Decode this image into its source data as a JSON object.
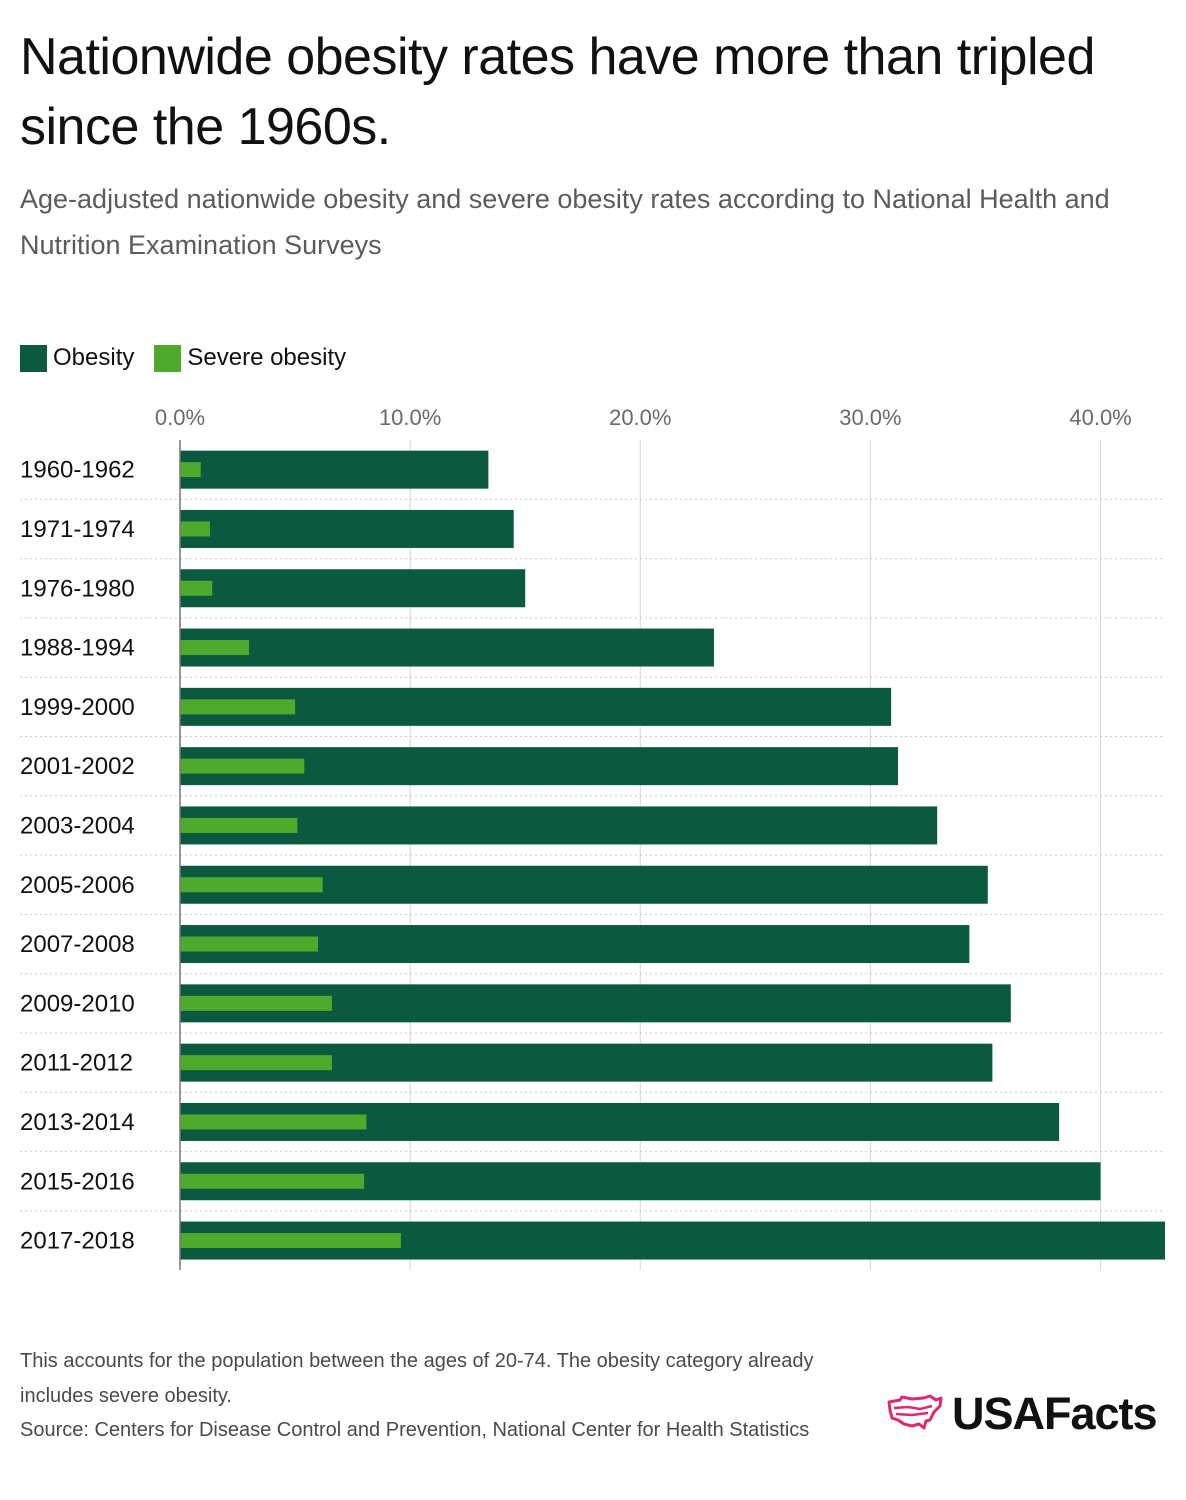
{
  "title": "Nationwide obesity rates have more than tripled since the 1960s.",
  "subtitle": "Age-adjusted nationwide obesity and severe obesity rates according to National Health and Nutrition Examination Surveys",
  "legend": {
    "obesity": "Obesity",
    "severe": "Severe obesity"
  },
  "colors": {
    "obesity": "#0b5a40",
    "severe": "#4fa92c",
    "logo_accent": "#e0286f"
  },
  "chart_data": {
    "type": "bar",
    "orientation": "horizontal",
    "categories": [
      "1960-1962",
      "1971-1974",
      "1976-1980",
      "1988-1994",
      "1999-2000",
      "2001-2002",
      "2003-2004",
      "2005-2006",
      "2007-2008",
      "2009-2010",
      "2011-2012",
      "2013-2014",
      "2015-2016",
      "2017-2018"
    ],
    "series": [
      {
        "name": "Obesity",
        "values": [
          13.4,
          14.5,
          15.0,
          23.2,
          30.9,
          31.2,
          32.9,
          35.1,
          34.3,
          36.1,
          35.3,
          38.2,
          40.0,
          42.8
        ]
      },
      {
        "name": "Severe obesity",
        "values": [
          0.9,
          1.3,
          1.4,
          3.0,
          5.0,
          5.4,
          5.1,
          6.2,
          6.0,
          6.6,
          6.6,
          8.1,
          8.0,
          9.6
        ]
      }
    ],
    "xlim": [
      0,
      42.8
    ],
    "xticks": [
      0,
      10,
      20,
      30,
      40
    ],
    "xtick_labels": [
      "0.0%",
      "10.0%",
      "20.0%",
      "30.0%",
      "40.0%"
    ],
    "xlabel": "",
    "ylabel": "",
    "grid": true,
    "legend_position": "top-left"
  },
  "footnote": {
    "note": "This accounts for the population between the ages of 20-74. The obesity category already includes severe obesity.",
    "source": "Source: Centers for Disease Control and Prevention, National Center for Health Statistics"
  },
  "logo": {
    "text": "USAFacts",
    "icon": "usa-map-icon"
  }
}
